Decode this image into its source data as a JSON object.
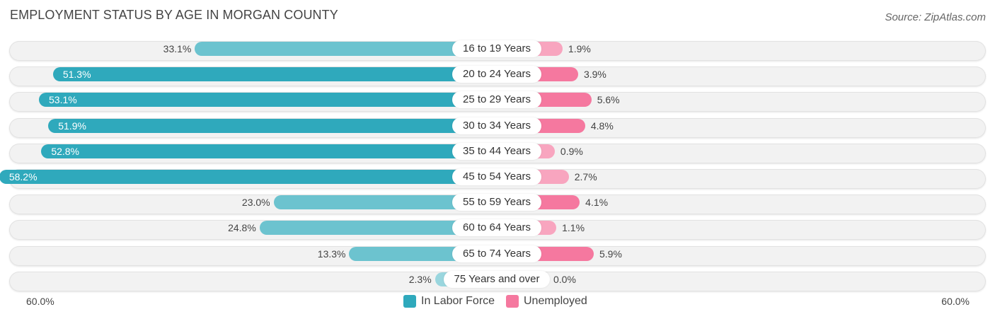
{
  "chart_data": {
    "type": "bar",
    "orientation": "horizontal-diverging",
    "title": "EMPLOYMENT STATUS BY AGE IN MORGAN COUNTY",
    "source": "Source: ZipAtlas.com",
    "categories": [
      "16 to 19 Years",
      "20 to 24 Years",
      "25 to 29 Years",
      "30 to 34 Years",
      "35 to 44 Years",
      "45 to 54 Years",
      "55 to 59 Years",
      "60 to 64 Years",
      "65 to 74 Years",
      "75 Years and over"
    ],
    "series": [
      {
        "name": "In Labor Force",
        "color": "#2fa9bc",
        "values": [
          33.1,
          51.3,
          53.1,
          51.9,
          52.8,
          58.2,
          23.0,
          24.8,
          13.3,
          2.3
        ],
        "labels": [
          "33.1%",
          "51.3%",
          "53.1%",
          "51.9%",
          "52.8%",
          "58.2%",
          "23.0%",
          "24.8%",
          "13.3%",
          "2.3%"
        ]
      },
      {
        "name": "Unemployed",
        "color": "#f5789f",
        "values": [
          1.9,
          3.9,
          5.6,
          4.8,
          0.9,
          2.7,
          4.1,
          1.1,
          5.9,
          0.0
        ],
        "labels": [
          "1.9%",
          "3.9%",
          "5.6%",
          "4.8%",
          "0.9%",
          "2.7%",
          "4.1%",
          "1.1%",
          "5.9%",
          "0.0%"
        ]
      }
    ],
    "axis": {
      "left_label": "60.0%",
      "right_label": "60.0%",
      "max": 60.0
    },
    "legend_position": "bottom-center"
  }
}
